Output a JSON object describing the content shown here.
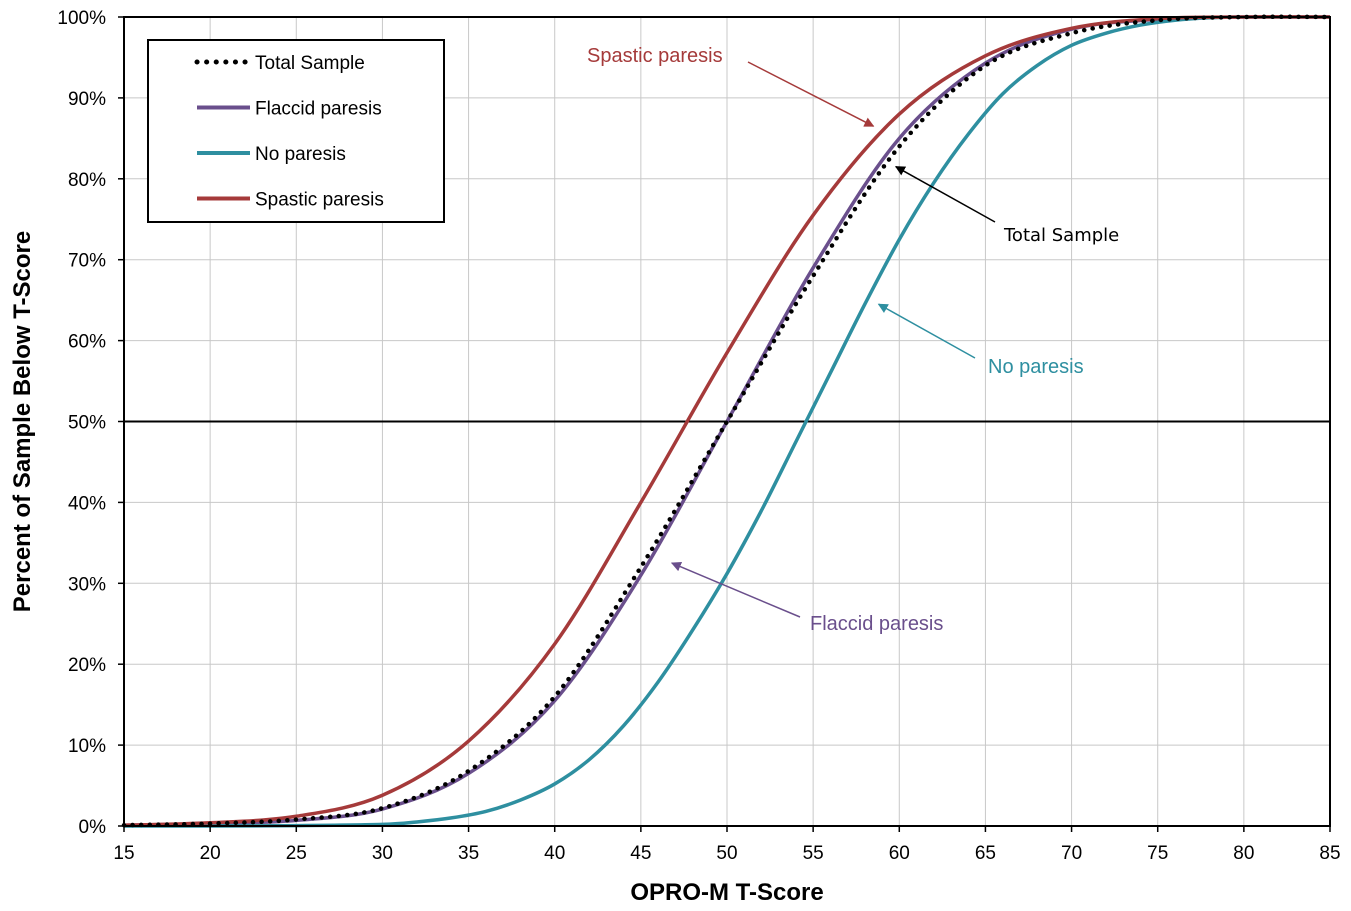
{
  "chart_data": {
    "type": "line",
    "xlabel": "OPRO-M T-Score",
    "ylabel": "Percent of Sample Below T-Score",
    "xlim": [
      15,
      85
    ],
    "ylim": [
      0,
      100
    ],
    "x_ticks": [
      "15",
      "20",
      "25",
      "30",
      "35",
      "40",
      "45",
      "50",
      "55",
      "60",
      "65",
      "70",
      "75",
      "80",
      "85"
    ],
    "y_ticks": [
      "0%",
      "10%",
      "20%",
      "30%",
      "40%",
      "50%",
      "60%",
      "70%",
      "80%",
      "90%",
      "100%"
    ],
    "grid": true,
    "reference_line_y": 50,
    "legend": {
      "position": "top-left",
      "entries": [
        "Total Sample",
        "Flaccid paresis",
        "No paresis",
        "Spastic paresis"
      ]
    },
    "series": [
      {
        "name": "Total Sample",
        "color": "#000000",
        "style": "dotted",
        "x": [
          15,
          20,
          25,
          30,
          35,
          40,
          45,
          50,
          55,
          60,
          65,
          70,
          75,
          80,
          85
        ],
        "y": [
          0.1,
          0.3,
          0.8,
          2.2,
          6.8,
          16,
          32,
          50,
          68,
          84,
          94,
          98,
          99.6,
          100,
          100
        ]
      },
      {
        "name": "Flaccid paresis",
        "color": "#6A4F8C",
        "style": "solid",
        "x": [
          15,
          20,
          25,
          30,
          35,
          40,
          45,
          50,
          55,
          60,
          65,
          70,
          75,
          80,
          85
        ],
        "y": [
          0.1,
          0.3,
          0.7,
          2.1,
          6.5,
          15.5,
          31,
          50,
          69,
          85,
          94.3,
          98.5,
          99.7,
          100,
          100
        ]
      },
      {
        "name": "No paresis",
        "color": "#2E8FA0",
        "style": "solid",
        "x": [
          15,
          20,
          25,
          30,
          32,
          34,
          36,
          38,
          40,
          42,
          44,
          46,
          48,
          50,
          52,
          54,
          56,
          58,
          60,
          62,
          64,
          66,
          68,
          70,
          72,
          74,
          76,
          78,
          80,
          85
        ],
        "y": [
          0,
          0,
          0.05,
          0.2,
          0.5,
          1.0,
          1.8,
          3.2,
          5.2,
          8.2,
          12.4,
          17.8,
          24.2,
          31.2,
          39,
          47.5,
          56,
          64.5,
          72.5,
          79.5,
          85.5,
          90.5,
          94,
          96.5,
          98,
          99,
          99.6,
          99.9,
          100,
          100
        ]
      },
      {
        "name": "Spastic paresis",
        "color": "#A53A3A",
        "style": "solid",
        "x": [
          15,
          20,
          25,
          30,
          35,
          40,
          45,
          50,
          55,
          60,
          65,
          70,
          75,
          80,
          85
        ],
        "y": [
          0.1,
          0.4,
          1.2,
          3.8,
          10.5,
          22.5,
          40,
          58.5,
          75.5,
          88,
          95.2,
          98.6,
          99.8,
          100,
          100
        ]
      }
    ],
    "annotations": [
      {
        "label": "Spastic paresis",
        "color": "#A53A3A",
        "target_x": 58.5,
        "target_y": 86.5
      },
      {
        "label": "Total Sample",
        "color": "#000000",
        "target_x": 59.8,
        "target_y": 81.5
      },
      {
        "label": "No paresis",
        "color": "#2E8FA0",
        "target_x": 58.8,
        "target_y": 64.5
      },
      {
        "label": "Flaccid paresis",
        "color": "#6A4F8C",
        "target_x": 46.8,
        "target_y": 32.5
      }
    ]
  }
}
